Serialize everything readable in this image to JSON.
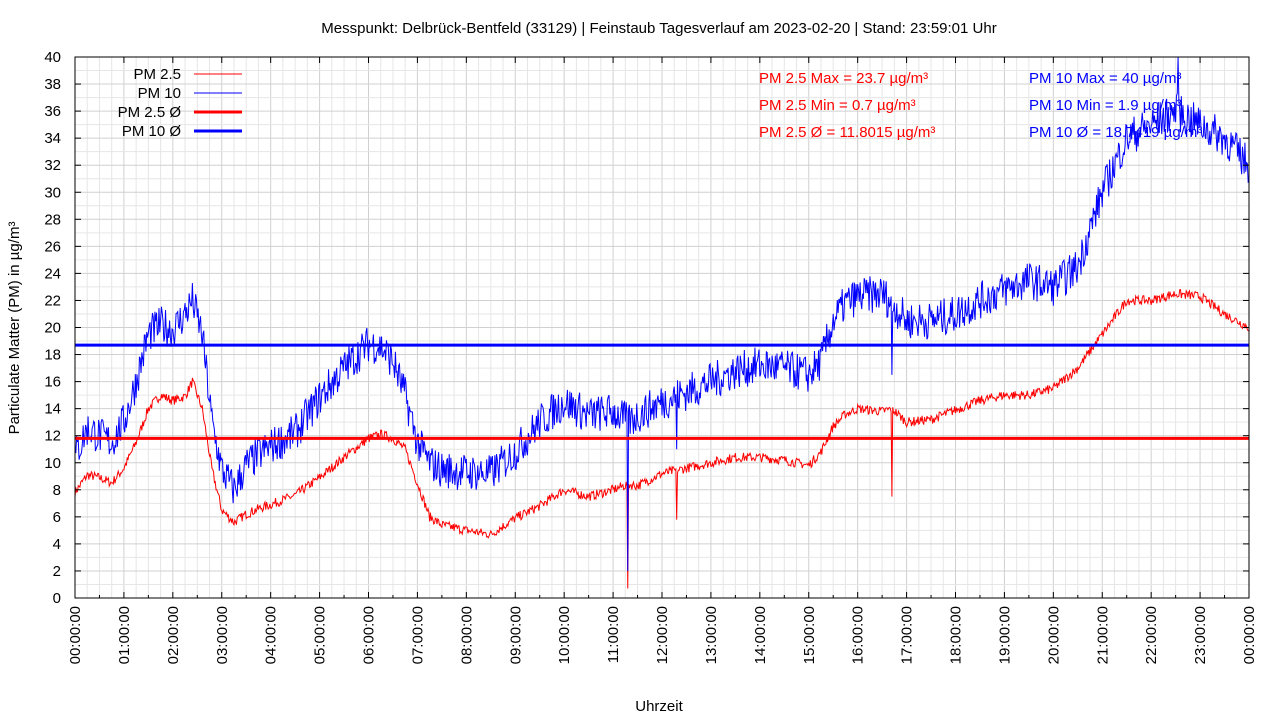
{
  "chart_data": {
    "type": "line",
    "title": "Messpunkt: Delbrück-Bentfeld (33129) | Feinstaub Tagesverlauf am 2023-02-20 | Stand: 23:59:01 Uhr",
    "xlabel": "Uhrzeit",
    "ylabel": "Particulate Matter (PM) in µg/m³",
    "ylim": [
      0,
      40
    ],
    "xlim": [
      "00:00:00",
      "24:00:00"
    ],
    "grid": true,
    "legend_position": "top-left",
    "x_tick_labels": [
      "00:00:00",
      "01:00:00",
      "02:00:00",
      "03:00:00",
      "04:00:00",
      "05:00:00",
      "06:00:00",
      "07:00:00",
      "08:00:00",
      "09:00:00",
      "10:00:00",
      "11:00:00",
      "12:00:00",
      "13:00:00",
      "14:00:00",
      "15:00:00",
      "16:00:00",
      "17:00:00",
      "18:00:00",
      "19:00:00",
      "20:00:00",
      "21:00:00",
      "22:00:00",
      "23:00:00",
      "00:00:00"
    ],
    "y_ticks": [
      0,
      2,
      4,
      6,
      8,
      10,
      12,
      14,
      16,
      18,
      20,
      22,
      24,
      26,
      28,
      30,
      32,
      34,
      36,
      38,
      40
    ],
    "series": [
      {
        "name": "PM 2.5",
        "color": "#ff0000",
        "x_hours": [
          0,
          0.25,
          0.5,
          0.75,
          1,
          1.25,
          1.5,
          1.75,
          2,
          2.25,
          2.4,
          2.6,
          2.8,
          3,
          3.25,
          3.5,
          3.75,
          4,
          4.5,
          5,
          5.5,
          6,
          6.25,
          6.5,
          6.75,
          7,
          7.25,
          7.5,
          8,
          8.5,
          9,
          9.5,
          10,
          10.5,
          11,
          11.3,
          11.5,
          12,
          12.5,
          13,
          13.5,
          14,
          14.5,
          15,
          15.25,
          15.5,
          15.75,
          16,
          16.5,
          16.7,
          17,
          17.5,
          18,
          18.5,
          19,
          19.5,
          20,
          20.5,
          21,
          21.5,
          22,
          22.5,
          23,
          23.5,
          24
        ],
        "values": [
          7.8,
          9.1,
          8.9,
          8.5,
          9.6,
          11.5,
          14.0,
          15.0,
          14.6,
          14.9,
          16.0,
          14.0,
          9.5,
          6.5,
          5.6,
          6.2,
          6.6,
          6.9,
          7.6,
          8.9,
          10.4,
          11.8,
          12.1,
          11.8,
          11.0,
          8.5,
          6.0,
          5.4,
          5.0,
          4.7,
          5.9,
          6.8,
          8.0,
          7.5,
          8.0,
          8.4,
          8.3,
          9.2,
          9.6,
          10.0,
          10.4,
          10.4,
          10.2,
          9.8,
          10.8,
          12.7,
          13.6,
          14.0,
          13.8,
          14.0,
          13.0,
          13.2,
          13.9,
          14.6,
          15.0,
          15.0,
          15.5,
          17.0,
          19.5,
          22.0,
          22.0,
          22.5,
          22.3,
          21.0,
          20.0
        ],
        "spikes": [
          {
            "x_hours": 11.3,
            "value": 0.7
          },
          {
            "x_hours": 12.3,
            "value": 5.8
          },
          {
            "x_hours": 16.7,
            "value": 7.5
          }
        ]
      },
      {
        "name": "PM 10",
        "color": "#0000ff",
        "x_hours": [
          0,
          0.25,
          0.5,
          0.75,
          1,
          1.25,
          1.5,
          1.75,
          2,
          2.25,
          2.4,
          2.6,
          2.8,
          3,
          3.25,
          3.5,
          3.75,
          4,
          4.5,
          5,
          5.5,
          6,
          6.25,
          6.5,
          6.75,
          7,
          7.25,
          7.5,
          8,
          8.5,
          9,
          9.5,
          10,
          10.5,
          11,
          11.3,
          11.5,
          12,
          12.5,
          13,
          13.5,
          14,
          14.5,
          15,
          15.25,
          15.5,
          15.75,
          16,
          16.5,
          16.7,
          17,
          17.5,
          18,
          18.5,
          19,
          19.5,
          20,
          20.5,
          21,
          21.5,
          22,
          22.5,
          23,
          23.5,
          24
        ],
        "values": [
          10.5,
          12.5,
          12.0,
          11.5,
          13.0,
          16.0,
          19.5,
          20.2,
          19.8,
          21.0,
          22.0,
          19.5,
          13.0,
          9.5,
          8.0,
          9.8,
          10.6,
          11.2,
          12.2,
          14.8,
          17.0,
          18.8,
          18.6,
          17.5,
          15.0,
          11.5,
          10.0,
          9.5,
          9.3,
          9.2,
          10.8,
          13.0,
          14.5,
          13.5,
          13.8,
          13.0,
          13.5,
          14.5,
          15.2,
          16.0,
          16.8,
          17.2,
          17.0,
          16.5,
          17.5,
          20.5,
          21.8,
          22.3,
          22.5,
          21.8,
          20.5,
          20.5,
          21.0,
          22.0,
          22.8,
          23.5,
          23.0,
          24.5,
          30.0,
          34.0,
          35.0,
          36.0,
          35.0,
          34.0,
          32.0
        ],
        "spikes": [
          {
            "x_hours": 11.3,
            "value": 2.0
          },
          {
            "x_hours": 12.3,
            "value": 11.0
          },
          {
            "x_hours": 16.7,
            "value": 16.5
          },
          {
            "x_hours": 22.55,
            "value": 40.0
          }
        ]
      }
    ],
    "averages": [
      {
        "name": "PM 2.5 Ø",
        "value": 11.8015,
        "color": "#ff0000"
      },
      {
        "name": "PM 10 Ø",
        "value": 18.7,
        "color": "#0000ff"
      }
    ],
    "annotations": {
      "pm25": {
        "color": "#ff0000",
        "lines": [
          "PM 2.5 Max = 23.7 µg/m³",
          "PM 2.5 Min = 0.7 µg/m³",
          "PM 2.5 Ø = 11.8015 µg/m³"
        ]
      },
      "pm10": {
        "color": "#0000ff",
        "lines": [
          "PM 10 Max = 40 µg/m³",
          "PM 10 Min = 1.9 µg/m³",
          "PM 10 Ø = 18.7419 µg/m³"
        ]
      }
    },
    "legend": [
      {
        "label": "PM 2.5",
        "color": "#ff0000",
        "weight": "thin"
      },
      {
        "label": "PM 10",
        "color": "#0000ff",
        "weight": "thin"
      },
      {
        "label": "PM 2.5 Ø",
        "color": "#ff0000",
        "weight": "thick"
      },
      {
        "label": "PM 10 Ø",
        "color": "#0000ff",
        "weight": "thick"
      }
    ]
  }
}
